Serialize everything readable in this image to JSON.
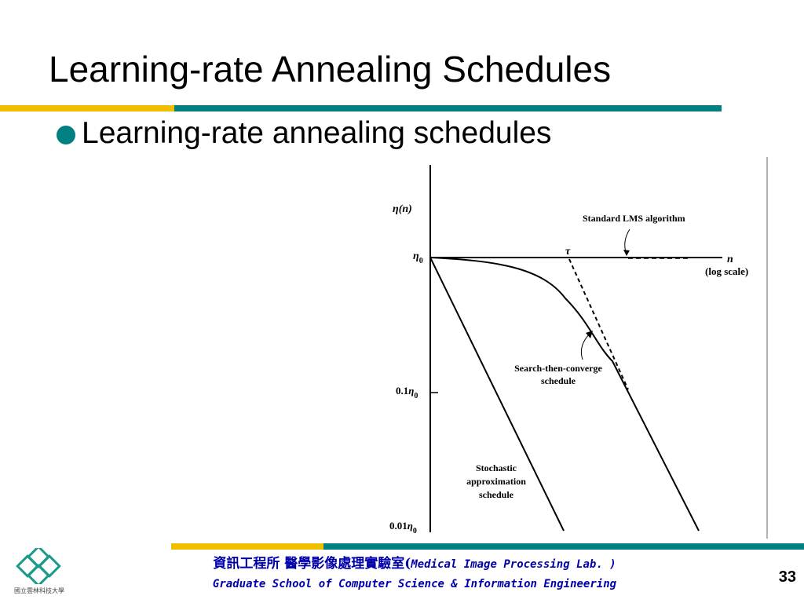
{
  "slide": {
    "title": "Learning-rate Annealing Schedules",
    "bullet": "Learning-rate annealing schedules",
    "page_number": "33"
  },
  "figure": {
    "y_axis_label_base": "η",
    "y_axis_label_suffix": "(n)",
    "tick_eta0_base": "η",
    "tick_eta0_sub": "0",
    "tick_01_prefix": "0.1",
    "tick_01_base": "η",
    "tick_01_sub": "0",
    "tick_001_prefix": "0.01",
    "tick_001_base": "η",
    "tick_001_sub": "0",
    "x_axis_label": "n",
    "x_axis_scale": "(log scale)",
    "tau_label": "τ",
    "annotation_lms": "Standard LMS algorithm",
    "annotation_stc_line1": "Search-then-converge",
    "annotation_stc_line2": "schedule",
    "annotation_sa_line1": "Stochastic",
    "annotation_sa_line2": "approximation",
    "annotation_sa_line3": "schedule"
  },
  "footer": {
    "line1_zh": "資訊工程所 醫學影像處理實驗室(",
    "line1_en": "Medical Image Processing Lab. )",
    "line2": "Graduate School of Computer Science & Information Engineering",
    "logo_caption": "國立雲林科技大學"
  },
  "colors": {
    "accent_teal": "#008080",
    "accent_yellow": "#f0c000",
    "footer_text": "#0000aa"
  },
  "icons": {
    "bullet": "filled-circle-bullet-icon",
    "logo": "university-logo-icon"
  }
}
